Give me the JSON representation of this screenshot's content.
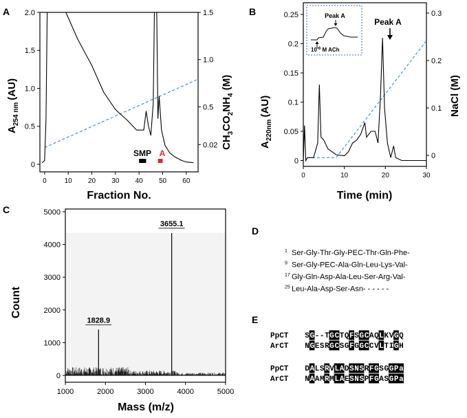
{
  "panels": {
    "A": {
      "label": "A",
      "y_label": "A254 nm (AU)",
      "y_label_main": "A",
      "y_label_sub": "254 nm",
      "y_label_unit": "(AU)",
      "y2_label": "CH3CO2NH4 (M)",
      "y2_label_parts": [
        "CH",
        "3",
        "CO",
        "2",
        "NH",
        "4",
        " (M)"
      ],
      "x_label": "Fraction No.",
      "x_ticks": [
        "0",
        "10",
        "20",
        "30",
        "40",
        "50",
        "60"
      ],
      "y_ticks": [
        "0",
        "0.5",
        "1.0",
        "1.5",
        "2.0"
      ],
      "y2_ticks": [
        "0.02",
        "0.5",
        "1.0",
        "1.5"
      ],
      "bar_labels": [
        "SMP",
        "A"
      ],
      "colors": {
        "trace": "#000000",
        "gradient": "#3a8fd8",
        "bar_smp": "#000000",
        "bar_a": "#e0262b"
      }
    },
    "B": {
      "label": "B",
      "y_label_main": "A",
      "y_label_sub": "220nm",
      "y_label_unit": "(AU)",
      "y2_label": "NaCl (M)",
      "x_label": "Time (min)",
      "x_ticks": [
        "0",
        "10",
        "20",
        "30"
      ],
      "y_ticks": [
        "0",
        "0.05",
        "0.1",
        "0.15",
        "0.2",
        "0.25"
      ],
      "y2_ticks": [
        "0",
        "0.1",
        "0.2",
        "0.3"
      ],
      "peak_label": "Peak A",
      "inset": {
        "peak_label": "Peak A",
        "stim_label": "10-6 M ACh",
        "stim_main": "10",
        "stim_exp": "-6",
        "stim_unit": " M ACh"
      }
    },
    "C": {
      "label": "C",
      "y_label": "Count",
      "x_label": "Mass (m/z)",
      "x_ticks": [
        "1000",
        "2000",
        "3000",
        "4000",
        "5000"
      ],
      "y_ticks": [
        "0",
        "1000",
        "2000",
        "3000",
        "4000",
        "5000"
      ],
      "peaks": [
        {
          "label": "1828.9",
          "mz": 1828.9,
          "count": 1400
        },
        {
          "label": "3655.1",
          "mz": 3655.1,
          "count": 4350
        }
      ]
    },
    "D": {
      "label": "D",
      "lines": [
        {
          "num": "1",
          "text": "Ser-Gly-Thr-Gly-PEC-Thr-Gln-Phe-"
        },
        {
          "num": "9",
          "text": "Ser-Gly-PEC-Ala-Gln-Leu-Lys-Val-"
        },
        {
          "num": "17",
          "text": "Gly-Gln-Asp-Ala-Leu-Ser-Arg-Val-"
        },
        {
          "num": "25",
          "text": "Leu-Ala-Asp-Ser-Asn- - - - - -"
        }
      ]
    },
    "E": {
      "label": "E",
      "blocks": [
        {
          "rows": [
            {
              "name": "PpCT",
              "seq": "SG--TGCTQFSGCAQLKVGQ"
            },
            {
              "name": "ArCT",
              "seq": "NGESRGCSGFGGCCVLTIGH"
            }
          ]
        },
        {
          "rows": [
            {
              "name": "PpCT",
              "seq": "DALSRVLADSNSRFGSGGPa"
            },
            {
              "name": "ArCT",
              "seq": "NAAMRMLAESNSPFGASGPa"
            }
          ]
        }
      ]
    }
  },
  "chart_data": [
    {
      "type": "line",
      "panel": "A",
      "title": "",
      "xlabel": "Fraction No.",
      "ylabel": "A254 nm (AU)",
      "y2label": "CH3CO2NH4 (M)",
      "xlim": [
        -2,
        65
      ],
      "ylim": [
        -0.1,
        2.0
      ],
      "series": [
        {
          "values": [
            [
              -1,
              0.02
            ],
            [
              0,
              0.05
            ],
            [
              0.6,
              0.6
            ],
            [
              0.9,
              1.5
            ],
            [
              1.1,
              2.0
            ],
            [
              5,
              2.0
            ],
            [
              8,
              2.0
            ],
            [
              9,
              2.0
            ],
            [
              14,
              1.65
            ],
            [
              20,
              1.3
            ],
            [
              25,
              0.95
            ],
            [
              30,
              0.72
            ],
            [
              35,
              0.58
            ],
            [
              39,
              0.45
            ],
            [
              42,
              0.45
            ],
            [
              43,
              0.7
            ],
            [
              44,
              0.5
            ],
            [
              45,
              0.38
            ],
            [
              46,
              0.8
            ],
            [
              46.5,
              2.0
            ],
            [
              47.5,
              2.0
            ],
            [
              48,
              0.6
            ],
            [
              48.5,
              0.9
            ],
            [
              49.5,
              0.45
            ],
            [
              51,
              0.25
            ],
            [
              53,
              0.15
            ],
            [
              55,
              0.1
            ],
            [
              58,
              0.05
            ],
            [
              60,
              0.03
            ],
            [
              63,
              0.02
            ]
          ]
        }
      ],
      "gradient": {
        "values": [
          [
            0,
            0.22
          ],
          [
            65,
            1.12
          ]
        ]
      },
      "bars": [
        {
          "name": "SMP",
          "x": [
            40,
            43
          ],
          "color": "#000000"
        },
        {
          "name": "A",
          "x": [
            48,
            50
          ],
          "color": "#e0262b"
        }
      ]
    },
    {
      "type": "line",
      "panel": "B",
      "title": "",
      "xlabel": "Time (min)",
      "ylabel": "A220nm (AU)",
      "y2label": "NaCl (M)",
      "xlim": [
        0,
        30
      ],
      "ylim": [
        -0.01,
        0.27
      ],
      "series": [
        {
          "values": [
            [
              0,
              0.0
            ],
            [
              0.3,
              0.06
            ],
            [
              0.6,
              0.0
            ],
            [
              1.0,
              0.005
            ],
            [
              2.5,
              0.005
            ],
            [
              3.5,
              0.03
            ],
            [
              3.9,
              0.13
            ],
            [
              4.3,
              0.04
            ],
            [
              5.0,
              0.035
            ],
            [
              6.0,
              0.02
            ],
            [
              8.0,
              0.01
            ],
            [
              10,
              0.008
            ],
            [
              11,
              0.015
            ],
            [
              12,
              0.03
            ],
            [
              13,
              0.035
            ],
            [
              14,
              0.045
            ],
            [
              15,
              0.065
            ],
            [
              15.4,
              0.04
            ],
            [
              16.5,
              0.05
            ],
            [
              17.5,
              0.05
            ],
            [
              18.2,
              0.03
            ],
            [
              18.8,
              0.11
            ],
            [
              19.3,
              0.21
            ],
            [
              19.8,
              0.09
            ],
            [
              20.5,
              0.03
            ],
            [
              21.3,
              0.005
            ],
            [
              22,
              0.025
            ],
            [
              22.5,
              0.005
            ],
            [
              24,
              0.0
            ],
            [
              27,
              0.0
            ],
            [
              30,
              0.0
            ]
          ]
        }
      ],
      "gradient": {
        "values": [
          [
            1,
            0.005
          ],
          [
            8,
            0.005
          ],
          [
            30,
            0.205
          ]
        ]
      }
    },
    {
      "type": "bar",
      "panel": "C",
      "title": "",
      "xlabel": "Mass (m/z)",
      "ylabel": "Count",
      "xlim": [
        1000,
        5000
      ],
      "ylim": [
        0,
        5000
      ],
      "series": [
        {
          "values": [
            [
              1828.9,
              1400
            ],
            [
              3655.1,
              4350
            ]
          ]
        }
      ]
    }
  ]
}
